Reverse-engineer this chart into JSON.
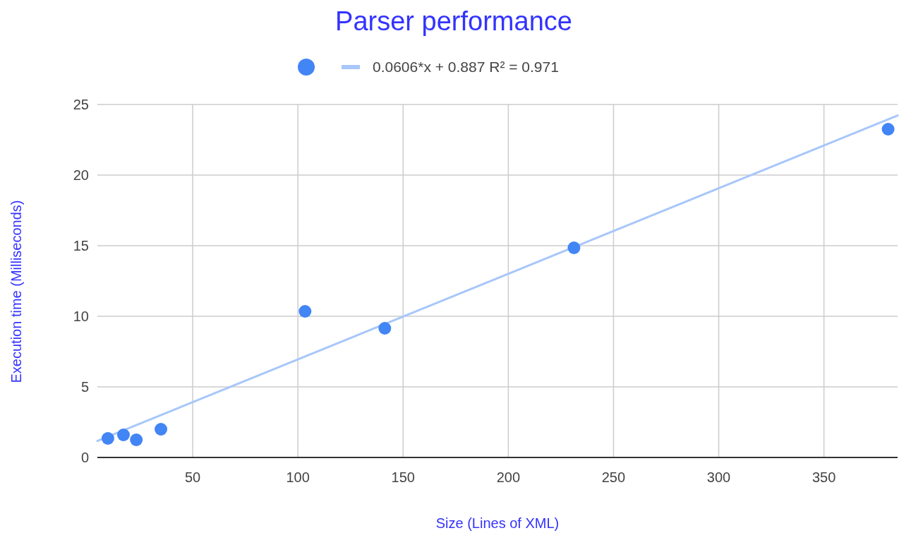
{
  "chart_data": {
    "type": "scatter",
    "title": "Parser performance",
    "xlabel": "Size (Lines of XML)",
    "ylabel": "Execution time (Milliseconds)",
    "xlim": [
      4.7,
      385
    ],
    "xticks": [
      50,
      100,
      150,
      200,
      250,
      300,
      350
    ],
    "ylim": [
      0,
      25
    ],
    "yticks": [
      0,
      5,
      10,
      15,
      20,
      25
    ],
    "grid": true,
    "legend": "top",
    "series": [
      {
        "color": "#4285f4",
        "marker": "circle",
        "x": [
          9.7,
          17.1,
          23.2,
          34.9,
          103.4,
          141.3,
          231.2,
          380.5
        ],
        "values": [
          1.35,
          1.6,
          1.25,
          2.0,
          10.35,
          9.15,
          14.85,
          23.25
        ]
      },
      {
        "type": "line",
        "name": "0.0606*x + 0.887 R² = 0.971",
        "color": "#a8c7fa",
        "line_style": "solid",
        "x": [
          4.7,
          385
        ],
        "values": [
          1.17,
          24.22
        ]
      }
    ]
  }
}
